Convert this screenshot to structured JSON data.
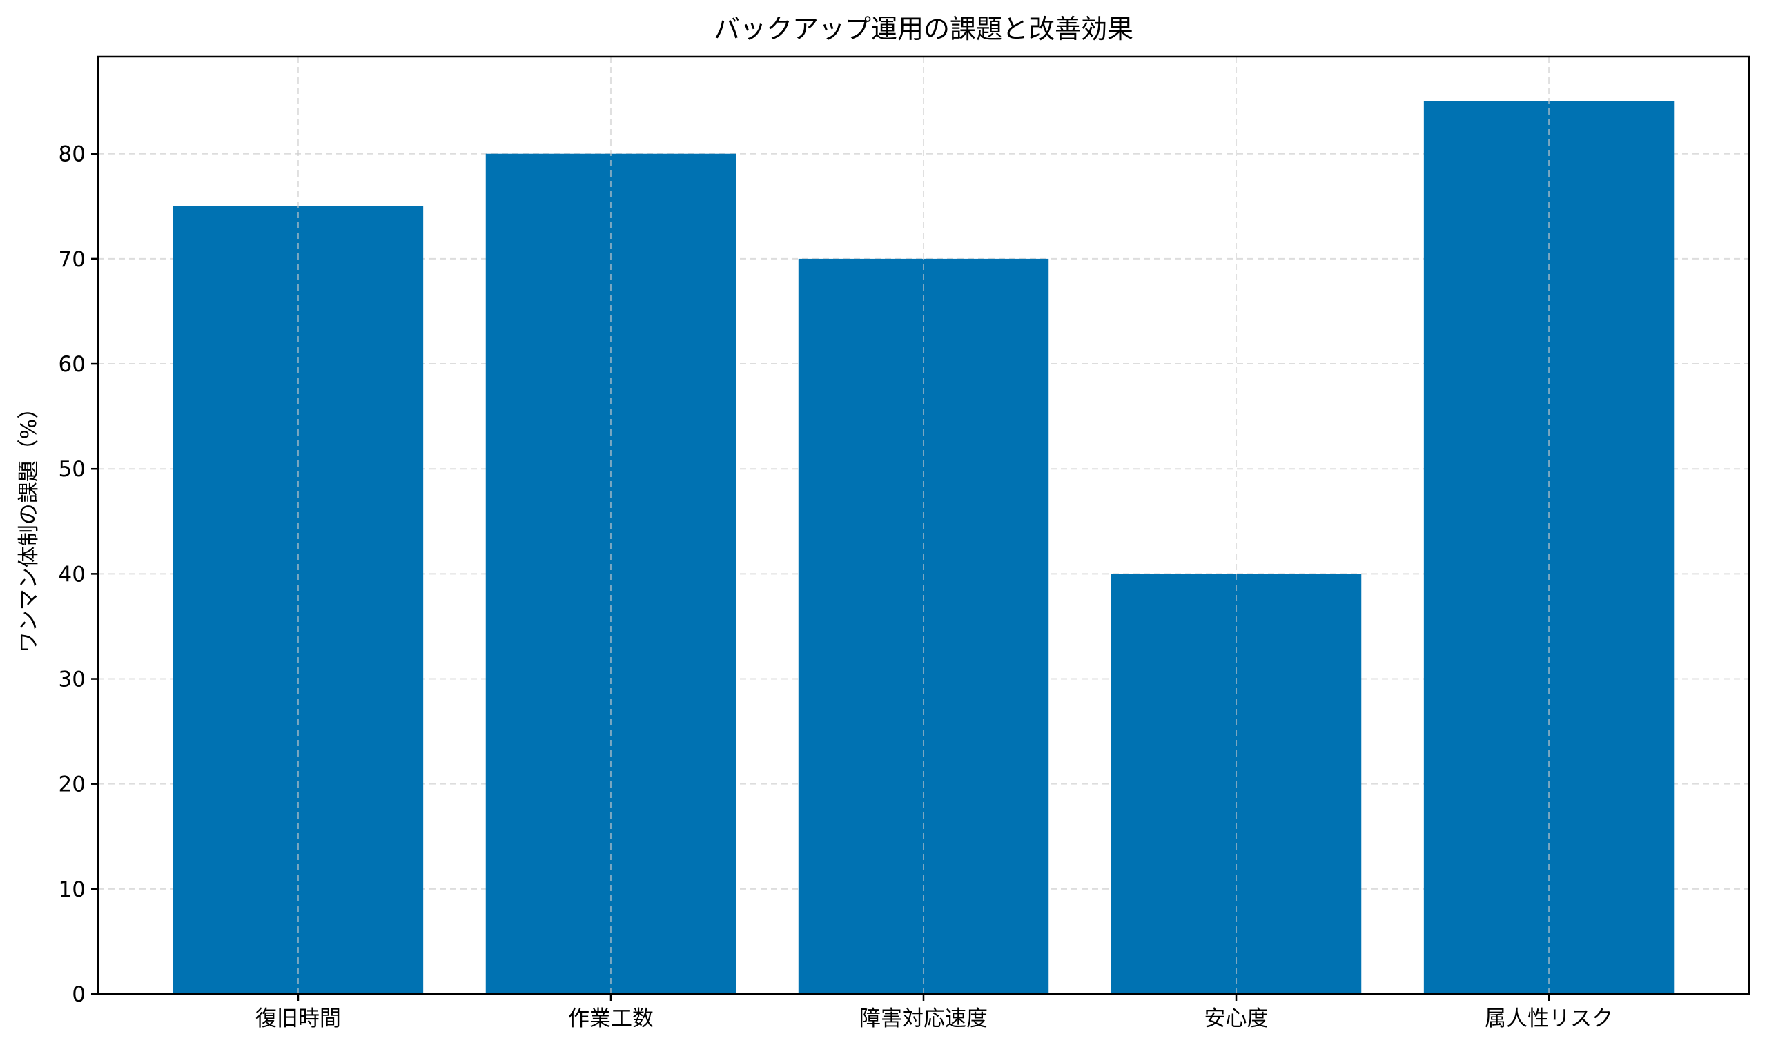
{
  "chart_data": {
    "type": "bar",
    "title": "バックアップ運用の課題と改善効果",
    "xlabel": "",
    "ylabel": "ワンマン体制の課題（%）",
    "categories": [
      "復旧時間",
      "作業工数",
      "障害対応速度",
      "安心度",
      "属人性リスク"
    ],
    "values": [
      75,
      80,
      70,
      40,
      85
    ],
    "ylim": [
      0,
      89.25
    ],
    "yticks": [
      0,
      10,
      20,
      30,
      40,
      50,
      60,
      70,
      80
    ],
    "grid": true,
    "bar_color": "#0072B2"
  }
}
